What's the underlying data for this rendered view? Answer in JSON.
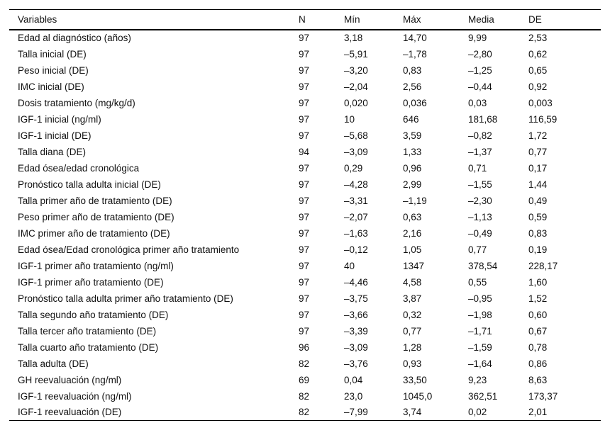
{
  "table": {
    "columns": [
      "Variables",
      "N",
      "Mín",
      "Máx",
      "Media",
      "DE"
    ],
    "rows": [
      [
        "Edad al diagnóstico (años)",
        "97",
        "3,18",
        "14,70",
        "9,99",
        "2,53"
      ],
      [
        "Talla inicial (DE)",
        "97",
        "–5,91",
        "–1,78",
        "–2,80",
        "0,62"
      ],
      [
        "Peso inicial (DE)",
        "97",
        "–3,20",
        "0,83",
        "–1,25",
        "0,65"
      ],
      [
        "IMC inicial (DE)",
        "97",
        "–2,04",
        "2,56",
        "–0,44",
        "0,92"
      ],
      [
        "Dosis tratamiento (mg/kg/d)",
        "97",
        "0,020",
        "0,036",
        "0,03",
        "0,003"
      ],
      [
        "IGF-1 inicial (ng/ml)",
        "97",
        "10",
        "646",
        "181,68",
        "116,59"
      ],
      [
        "IGF-1 inicial (DE)",
        "97",
        "–5,68",
        "3,59",
        "–0,82",
        "1,72"
      ],
      [
        "Talla diana (DE)",
        "94",
        "–3,09",
        "1,33",
        "–1,37",
        "0,77"
      ],
      [
        "Edad ósea/edad cronológica",
        "97",
        "0,29",
        "0,96",
        "0,71",
        "0,17"
      ],
      [
        "Pronóstico talla adulta inicial (DE)",
        "97",
        "–4,28",
        "2,99",
        "–1,55",
        "1,44"
      ],
      [
        "Talla primer año de tratamiento (DE)",
        "97",
        "–3,31",
        "–1,19",
        "–2,30",
        "0,49"
      ],
      [
        "Peso primer año de tratamiento (DE)",
        "97",
        "–2,07",
        "0,63",
        "–1,13",
        "0,59"
      ],
      [
        "IMC primer año de tratamiento (DE)",
        "97",
        "–1,63",
        "2,16",
        "–0,49",
        "0,83"
      ],
      [
        "Edad ósea/Edad cronológica primer año tratamiento",
        "97",
        "–0,12",
        "1,05",
        "0,77",
        "0,19"
      ],
      [
        "IGF-1 primer año tratamiento (ng/ml)",
        "97",
        "40",
        "1347",
        "378,54",
        "228,17"
      ],
      [
        "IGF-1 primer año tratamiento (DE)",
        "97",
        "–4,46",
        "4,58",
        "0,55",
        "1,60"
      ],
      [
        "Pronóstico talla adulta primer año tratamiento (DE)",
        "97",
        "–3,75",
        "3,87",
        "–0,95",
        "1,52"
      ],
      [
        "Talla segundo año tratamiento (DE)",
        "97",
        "–3,66",
        "0,32",
        "–1,98",
        "0,60"
      ],
      [
        "Talla tercer año tratamiento (DE)",
        "97",
        "–3,39",
        "0,77",
        "–1,71",
        "0,67"
      ],
      [
        "Talla cuarto año tratamiento (DE)",
        "96",
        "–3,09",
        "1,28",
        "–1,59",
        "0,78"
      ],
      [
        "Talla adulta (DE)",
        "82",
        "–3,76",
        "0,93",
        "–1,64",
        "0,86"
      ],
      [
        "GH reevaluación (ng/ml)",
        "69",
        "0,04",
        "33,50",
        "9,23",
        "8,63"
      ],
      [
        "IGF-1 reevaluación (ng/ml)",
        "82",
        "23,0",
        "1045,0",
        "362,51",
        "173,37"
      ],
      [
        "IGF-1 reevaluación (DE)",
        "82",
        "–7,99",
        "3,74",
        "0,02",
        "2,01"
      ]
    ],
    "cell_names": [
      "cell-variable",
      "cell-n",
      "cell-min",
      "cell-max",
      "cell-media",
      "cell-de"
    ]
  }
}
